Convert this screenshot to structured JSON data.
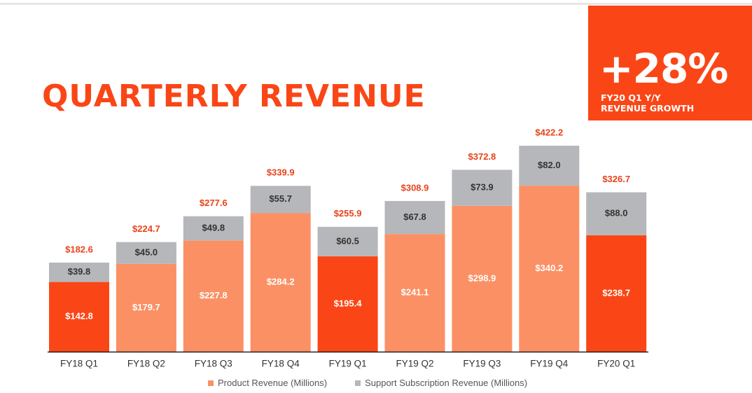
{
  "title": "QUARTERLY REVENUE",
  "badge": {
    "value": "+28%",
    "caption_line1": "FY20 Q1 Y/Y",
    "caption_line2": "REVENUE GROWTH"
  },
  "colors": {
    "accent": "#fa4616",
    "product": "#fb9065",
    "support": "#b6b7ba",
    "highlight": "#fa4616",
    "total_label": "#e8431b"
  },
  "chart_data": {
    "type": "bar",
    "stacked": true,
    "categories": [
      "FY18 Q1",
      "FY18 Q2",
      "FY18 Q3",
      "FY18 Q4",
      "FY19 Q1",
      "FY19 Q2",
      "FY19 Q3",
      "FY19 Q4",
      "FY20 Q1"
    ],
    "series": [
      {
        "name": "Product Revenue (Millions)",
        "values": [
          142.8,
          179.7,
          227.8,
          284.2,
          195.4,
          241.1,
          298.9,
          340.2,
          238.7
        ],
        "labels": [
          "$142.8",
          "$179.7",
          "$227.8",
          "$284.2",
          "$195.4",
          "$241.1",
          "$298.9",
          "$340.2",
          "$238.7"
        ]
      },
      {
        "name": "Support Subscription Revenue (Millions)",
        "values": [
          39.8,
          45.0,
          49.8,
          55.7,
          60.5,
          67.8,
          73.9,
          82.0,
          88.0
        ],
        "labels": [
          "$39.8",
          "$45.0",
          "$49.8",
          "$55.7",
          "$60.5",
          "$67.8",
          "$73.9",
          "$82.0",
          "$88.0"
        ]
      }
    ],
    "totals": [
      "$182.6",
      "$224.7",
      "$277.6",
      "$339.9",
      "$255.9",
      "$308.9",
      "$372.8",
      "$422.2",
      "$326.7"
    ],
    "highlighted_categories": [
      "FY18 Q1",
      "FY19 Q1",
      "FY20 Q1"
    ],
    "legend_position": "bottom",
    "ylim": [
      0,
      440
    ]
  }
}
